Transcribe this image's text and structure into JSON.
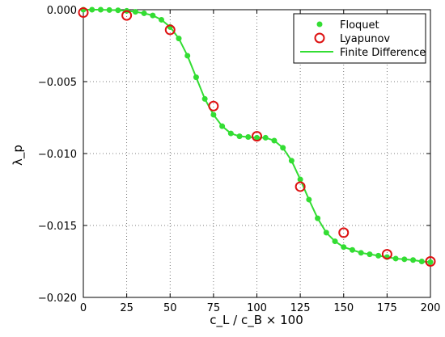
{
  "chart_data": {
    "type": "line",
    "xlabel": "c_L / c_B × 100",
    "ylabel": "λ_p",
    "xlim": [
      0,
      200
    ],
    "ylim": [
      -0.02,
      0.0
    ],
    "x_ticks": [
      0,
      25,
      50,
      75,
      100,
      125,
      150,
      175,
      200
    ],
    "x_tick_labels": [
      "0",
      "25",
      "50",
      "75",
      "100",
      "125",
      "150",
      "175",
      "200"
    ],
    "y_ticks": [
      0.0,
      -0.005,
      -0.01,
      -0.015,
      -0.02
    ],
    "y_tick_labels": [
      "0.000",
      "−0.005",
      "−0.010",
      "−0.015",
      "−0.020"
    ],
    "grid": true,
    "grid_style": "dotted",
    "legend_position": "top-right",
    "series": [
      {
        "name": "Floquet",
        "style": "dots",
        "color": "#33dd33",
        "x": [
          0,
          5,
          10,
          15,
          20,
          25,
          30,
          35,
          40,
          45,
          50,
          55,
          60,
          65,
          70,
          75,
          80,
          85,
          90,
          95,
          100,
          105,
          110,
          115,
          120,
          125,
          130,
          135,
          140,
          145,
          150,
          155,
          160,
          165,
          170,
          175,
          180,
          185,
          190,
          195,
          200
        ],
        "y": [
          0.0,
          0.0,
          0.0,
          -2e-05,
          -4e-05,
          -8e-05,
          -0.00015,
          -0.00025,
          -0.0004,
          -0.0007,
          -0.0012,
          -0.002,
          -0.0032,
          -0.0047,
          -0.0062,
          -0.0073,
          -0.0081,
          -0.0086,
          -0.0088,
          -0.00885,
          -0.0089,
          -0.0089,
          -0.0091,
          -0.0096,
          -0.0105,
          -0.0118,
          -0.0132,
          -0.0145,
          -0.0155,
          -0.0161,
          -0.0165,
          -0.0167,
          -0.0169,
          -0.017,
          -0.0171,
          -0.0172,
          -0.0173,
          -0.01735,
          -0.0174,
          -0.0175,
          -0.01755
        ]
      },
      {
        "name": "Lyapunov",
        "style": "open-circles",
        "color": "#dd1111",
        "x": [
          0,
          25,
          50,
          75,
          100,
          125,
          150,
          175,
          200
        ],
        "y": [
          -0.0002,
          -0.0004,
          -0.0014,
          -0.0067,
          -0.0088,
          -0.0123,
          -0.0155,
          -0.017,
          -0.0175
        ]
      },
      {
        "name": "Finite Difference",
        "style": "line",
        "color": "#33dd33",
        "x": [
          0,
          5,
          10,
          15,
          20,
          25,
          30,
          35,
          40,
          45,
          50,
          55,
          60,
          65,
          70,
          75,
          80,
          85,
          90,
          95,
          100,
          105,
          110,
          115,
          120,
          125,
          130,
          135,
          140,
          145,
          150,
          155,
          160,
          165,
          170,
          175,
          180,
          185,
          190,
          195,
          200
        ],
        "y": [
          0.0,
          0.0,
          0.0,
          -2e-05,
          -4e-05,
          -8e-05,
          -0.00015,
          -0.00025,
          -0.0004,
          -0.0007,
          -0.0012,
          -0.002,
          -0.0032,
          -0.0047,
          -0.0062,
          -0.0073,
          -0.0081,
          -0.0086,
          -0.0088,
          -0.00885,
          -0.0089,
          -0.0089,
          -0.0091,
          -0.0096,
          -0.0105,
          -0.0118,
          -0.0132,
          -0.0145,
          -0.0155,
          -0.0161,
          -0.0165,
          -0.0167,
          -0.0169,
          -0.017,
          -0.0171,
          -0.0172,
          -0.0173,
          -0.01735,
          -0.0174,
          -0.0175,
          -0.01755
        ]
      }
    ]
  }
}
